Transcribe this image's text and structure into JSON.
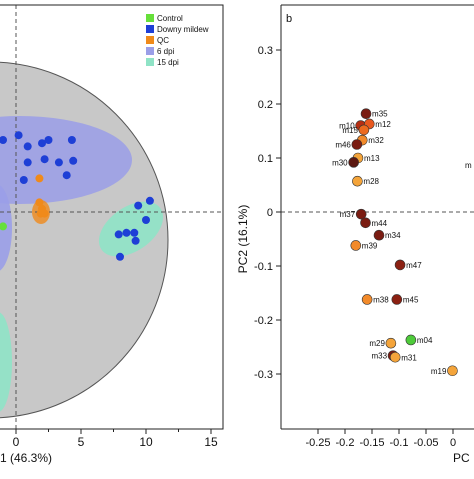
{
  "chart_data": [
    {
      "type": "scatter",
      "panel_label": "",
      "xlabel": "1 (46.3%)",
      "ylabel": "",
      "xlim": [
        -1.2,
        16
      ],
      "ylim": [
        -12.5,
        13.5
      ],
      "x_ticks": [
        "0",
        "5",
        "10",
        "15"
      ],
      "x_tick_values": [
        0,
        5,
        10,
        15
      ],
      "grid": false,
      "legend_position": "top-right",
      "legend": [
        {
          "label": "Control",
          "color": "#66e03a"
        },
        {
          "label": "Downy mildew",
          "color": "#1e3fd6"
        },
        {
          "label": "QC",
          "color": "#f08a1a"
        },
        {
          "label": "6 dpi",
          "color": "#9a9ee8"
        },
        {
          "label": "15 dpi",
          "color": "#8fe3c6"
        }
      ],
      "series": [
        {
          "group": "Downy mildew",
          "color": "#1e3fd6",
          "points": [
            [
              -1.0,
              4.5
            ],
            [
              0.2,
              4.8
            ],
            [
              0.9,
              4.1
            ],
            [
              0.6,
              2.0
            ],
            [
              0.9,
              3.1
            ],
            [
              2.0,
              4.3
            ],
            [
              2.2,
              3.3
            ],
            [
              2.5,
              4.5
            ],
            [
              3.3,
              3.1
            ],
            [
              4.3,
              4.5
            ],
            [
              4.4,
              3.2
            ],
            [
              3.9,
              2.3
            ],
            [
              9.1,
              -1.3
            ],
            [
              9.4,
              0.4
            ],
            [
              9.2,
              -1.8
            ],
            [
              10.0,
              -0.5
            ],
            [
              10.3,
              0.7
            ],
            [
              7.9,
              -1.4
            ],
            [
              8.5,
              -1.3
            ],
            [
              8.0,
              -2.8
            ]
          ]
        },
        {
          "group": "QC",
          "color": "#f08a1a",
          "points": [
            [
              1.8,
              0.6
            ],
            [
              2.0,
              0.2
            ],
            [
              1.9,
              -0.1
            ],
            [
              2.2,
              -0.1
            ],
            [
              1.8,
              2.1
            ]
          ]
        },
        {
          "group": "Control",
          "color": "#66e03a",
          "points": [
            [
              -1.0,
              -0.9
            ]
          ]
        }
      ]
    },
    {
      "type": "scatter",
      "panel_label": "b",
      "xlabel": "PC",
      "ylabel": "PC2 (16.1%)",
      "xlim": [
        -0.25,
        0.03
      ],
      "ylim": [
        -0.37,
        0.37
      ],
      "x_ticks": [
        "-0.25",
        "-0.2",
        "-0.15",
        "-0.1",
        "-0.05",
        "0"
      ],
      "x_tick_values": [
        -0.25,
        -0.2,
        -0.15,
        -0.1,
        -0.05,
        0
      ],
      "y_ticks": [
        "0.3",
        "0.2",
        "0.1",
        "0",
        "-0.1",
        "-0.2",
        "-0.3"
      ],
      "y_tick_values": [
        0.3,
        0.2,
        0.1,
        0,
        -0.1,
        -0.2,
        -0.3
      ],
      "grid": false,
      "points": [
        {
          "label": "m35",
          "x": -0.161,
          "y": 0.182,
          "color": "#7a1c12"
        },
        {
          "label": "m10",
          "x": -0.171,
          "y": 0.16,
          "color": "#b52e12"
        },
        {
          "label": "m12",
          "x": -0.155,
          "y": 0.163,
          "color": "#e8581e"
        },
        {
          "label": "m15",
          "x": -0.165,
          "y": 0.152,
          "color": "#ec6a1e"
        },
        {
          "label": "m32",
          "x": -0.168,
          "y": 0.133,
          "color": "#f28a2a"
        },
        {
          "label": "m46",
          "x": -0.178,
          "y": 0.125,
          "color": "#7a1c12"
        },
        {
          "label": "m13",
          "x": -0.176,
          "y": 0.1,
          "color": "#f4a43a"
        },
        {
          "label": "m30",
          "x": -0.184,
          "y": 0.092,
          "color": "#5c1810"
        },
        {
          "label": "m28",
          "x": -0.177,
          "y": 0.057,
          "color": "#f4a43a"
        },
        {
          "label": "m37",
          "x": -0.17,
          "y": -0.004,
          "color": "#7a1c12"
        },
        {
          "label": "m44",
          "x": -0.162,
          "y": -0.02,
          "color": "#7a1c12"
        },
        {
          "label": "m34",
          "x": -0.137,
          "y": -0.043,
          "color": "#7a1c12"
        },
        {
          "label": "m39",
          "x": -0.18,
          "y": -0.062,
          "color": "#f28a2a"
        },
        {
          "label": "m47",
          "x": -0.098,
          "y": -0.098,
          "color": "#8b2012"
        },
        {
          "label": "m38",
          "x": -0.159,
          "y": -0.162,
          "color": "#f28a2a"
        },
        {
          "label": "m45",
          "x": -0.104,
          "y": -0.162,
          "color": "#8b2012"
        },
        {
          "label": "m29",
          "x": -0.115,
          "y": -0.243,
          "color": "#f4a43a"
        },
        {
          "label": "m04",
          "x": -0.078,
          "y": -0.237,
          "color": "#4ecb3a"
        },
        {
          "label": "m33",
          "x": -0.111,
          "y": -0.266,
          "color": "#7a1c12"
        },
        {
          "label": "m31",
          "x": -0.107,
          "y": -0.269,
          "color": "#f4a43a"
        },
        {
          "label": "m19",
          "x": -0.001,
          "y": -0.294,
          "color": "#f4a43a"
        }
      ],
      "partial_labels": [
        "m",
        "m19"
      ]
    }
  ]
}
